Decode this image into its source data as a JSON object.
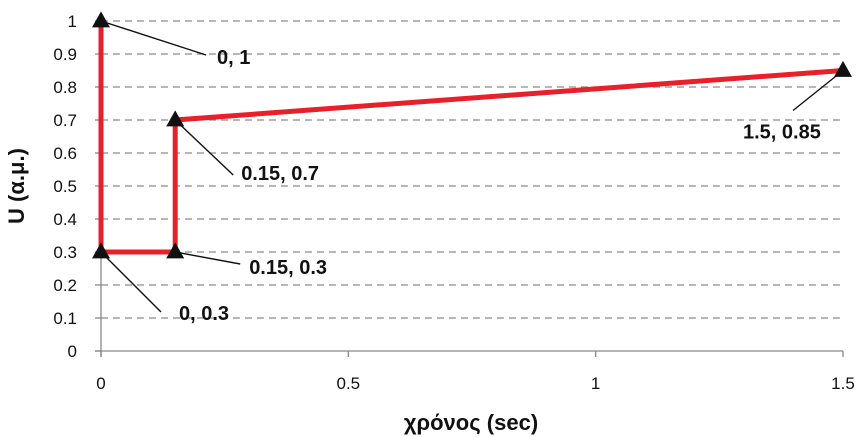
{
  "chart_data": {
    "type": "line",
    "title": "",
    "xlabel": "χρόνος (sec)",
    "ylabel": "U (α.μ.)",
    "xlim": [
      0,
      1.5
    ],
    "ylim": [
      0,
      1
    ],
    "xticks": [
      0,
      0.5,
      1,
      1.5
    ],
    "xtick_labels": [
      "0",
      "0.5",
      "1",
      "1.5"
    ],
    "yticks": [
      0,
      0.1,
      0.2,
      0.3,
      0.4,
      0.5,
      0.6,
      0.7,
      0.8,
      0.9,
      1
    ],
    "ytick_labels": [
      "0",
      "0.1",
      "0.2",
      "0.3",
      "0.4",
      "0.5",
      "0.6",
      "0.7",
      "0.8",
      "0.9",
      "1"
    ],
    "grid": "horizontal dashed",
    "legend": "none",
    "series": [
      {
        "color": "#e8202a",
        "marker": "triangle",
        "marker_color": "#111111",
        "points": [
          {
            "x": 0,
            "y": 1,
            "label": "0, 1",
            "label_pos": "right"
          },
          {
            "x": 0,
            "y": 0.3,
            "label": "0, 0.3",
            "label_pos": "below-right"
          },
          {
            "x": 0.15,
            "y": 0.3,
            "label": "0.15, 0.3",
            "label_pos": "right"
          },
          {
            "x": 0.15,
            "y": 0.7,
            "label": "0.15, 0.7",
            "label_pos": "below-right"
          },
          {
            "x": 1.5,
            "y": 0.85,
            "label": "1.5, 0.85",
            "label_pos": "below-left"
          }
        ]
      }
    ]
  }
}
